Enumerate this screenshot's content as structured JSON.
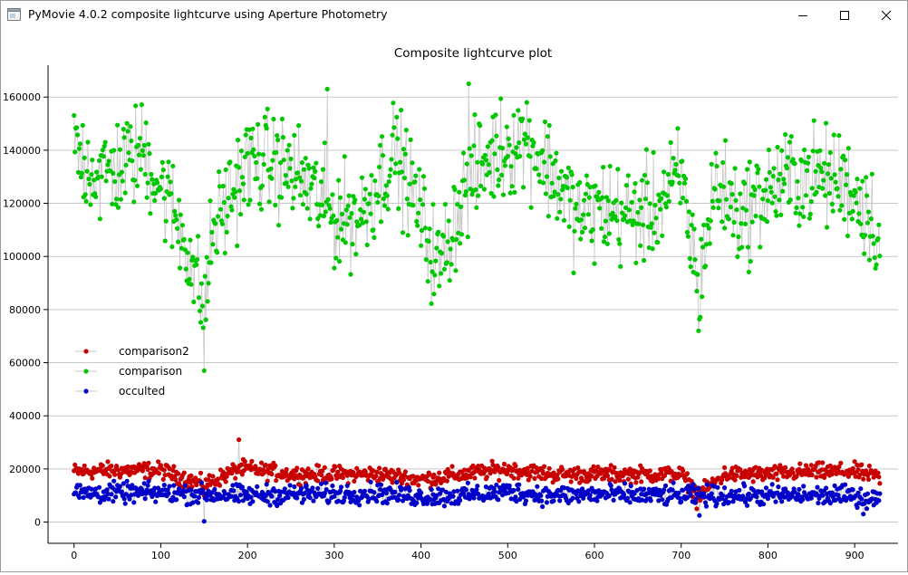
{
  "window": {
    "title": "PyMovie 4.0.2 composite lightcurve using Aperture Photometry",
    "controls": {
      "minimize": "minimize-icon",
      "maximize": "maximize-icon",
      "close": "close-icon"
    }
  },
  "chart_data": {
    "type": "scatter",
    "title": "Composite lightcurve plot",
    "xlabel": "",
    "ylabel": "",
    "xlim": [
      -30,
      950
    ],
    "ylim": [
      -8000,
      172000
    ],
    "x_ticks": [
      0,
      100,
      200,
      300,
      400,
      500,
      600,
      700,
      800,
      900
    ],
    "y_ticks": [
      0,
      20000,
      40000,
      60000,
      80000,
      100000,
      120000,
      140000,
      160000
    ],
    "y_grid": true,
    "legend_position": "left, middle",
    "connecting_lines": "light gray",
    "n_points": 930,
    "series": [
      {
        "name": "comparison2",
        "color": "#c80000",
        "anchors_x": [
          0,
          50,
          100,
          150,
          190,
          200,
          250,
          300,
          350,
          400,
          450,
          500,
          550,
          600,
          650,
          700,
          720,
          750,
          800,
          850,
          900,
          929
        ],
        "anchors_y": [
          19000,
          19500,
          19500,
          14000,
          20000,
          20000,
          18000,
          18000,
          18000,
          16000,
          18000,
          20000,
          18000,
          18000,
          18000,
          18000,
          10000,
          18000,
          18000,
          19000,
          19000,
          17000
        ],
        "spread": 4500,
        "outliers": [
          [
            190,
            31000
          ],
          [
            150,
            10000
          ],
          [
            718,
            5000
          ]
        ]
      },
      {
        "name": "comparison",
        "color": "#00c800",
        "anchors_x": [
          0,
          30,
          60,
          80,
          110,
          130,
          150,
          160,
          200,
          230,
          260,
          300,
          330,
          370,
          395,
          420,
          450,
          480,
          520,
          555,
          580,
          610,
          640,
          670,
          700,
          720,
          740,
          770,
          800,
          830,
          860,
          890,
          920,
          929
        ],
        "anchors_y": [
          140000,
          130000,
          135000,
          140000,
          120000,
          105000,
          80000,
          110000,
          135000,
          135000,
          130000,
          115000,
          115000,
          140000,
          120000,
          95000,
          125000,
          138000,
          145000,
          130000,
          115000,
          118000,
          115000,
          118000,
          130000,
          90000,
          128000,
          115000,
          125000,
          130000,
          130000,
          128000,
          115000,
          105000
        ],
        "spread": 28000,
        "outliers": [
          [
            292,
            163000
          ],
          [
            455,
            165000
          ],
          [
            150,
            57000
          ],
          [
            720,
            72000
          ]
        ]
      },
      {
        "name": "occulted",
        "color": "#0000c8",
        "anchors_x": [
          0,
          50,
          100,
          150,
          200,
          250,
          300,
          350,
          400,
          450,
          500,
          550,
          600,
          650,
          700,
          750,
          800,
          850,
          900,
          929
        ],
        "anchors_y": [
          11000,
          11000,
          11000,
          10500,
          10000,
          10500,
          10500,
          11000,
          9500,
          10000,
          11500,
          10000,
          10500,
          10000,
          10000,
          10000,
          10000,
          10000,
          10000,
          8500
        ],
        "spread": 5500,
        "outliers": [
          [
            150,
            300
          ],
          [
            721,
            2500
          ],
          [
            910,
            3000
          ]
        ]
      }
    ]
  }
}
